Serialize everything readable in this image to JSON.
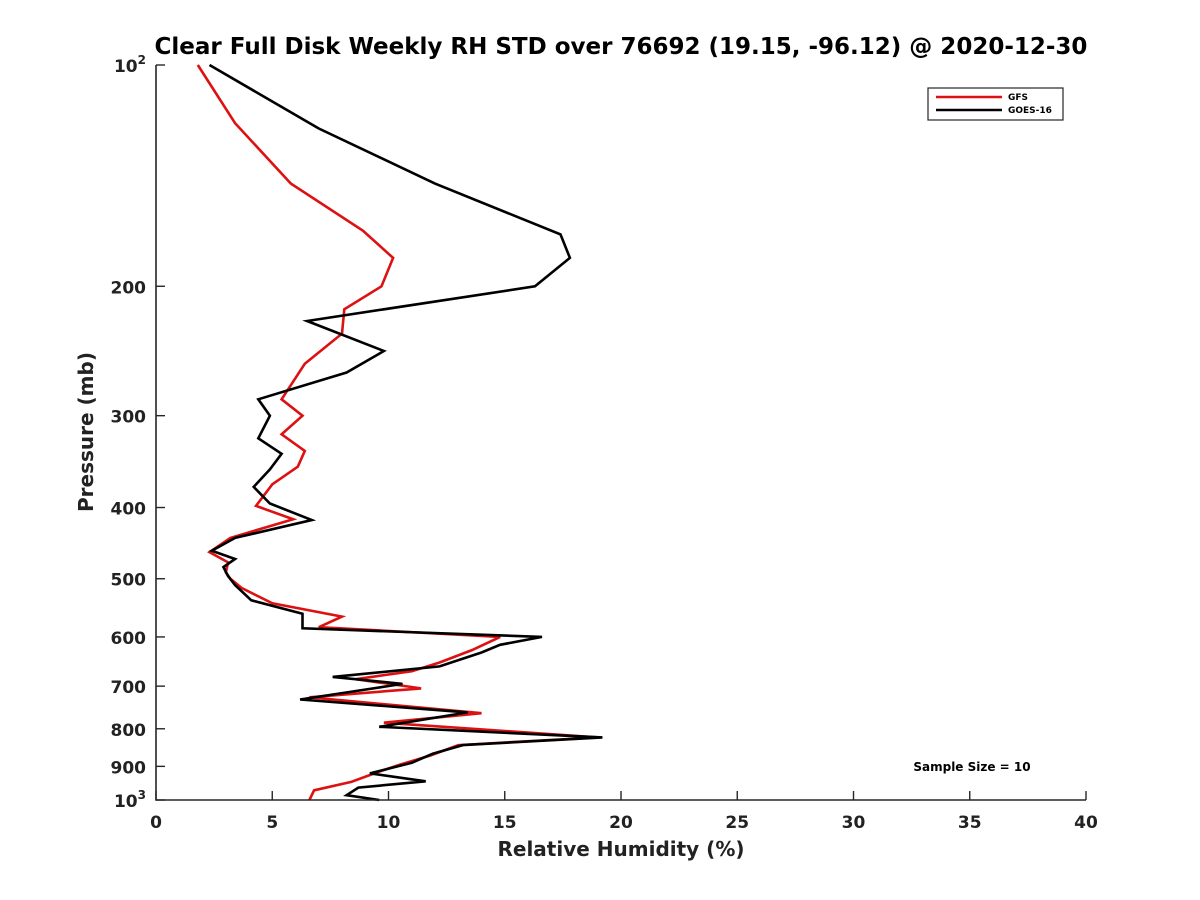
{
  "chart_data": {
    "type": "line",
    "title": "Clear Full Disk Weekly RH STD over 76692 (19.15, -96.12) @ 2020-12-30",
    "xlabel": "Relative Humidity (%)",
    "ylabel": "Pressure (mb)",
    "xlim": [
      0,
      40
    ],
    "ylim": [
      100,
      1000
    ],
    "yscale": "log",
    "yreversed": true,
    "grid": false,
    "legend_position": "top-right",
    "x_ticks": [
      "0",
      "5",
      "10",
      "15",
      "20",
      "25",
      "30",
      "35",
      "40"
    ],
    "y_ticks": [
      {
        "value": 100,
        "base": "10",
        "exp": "2"
      },
      {
        "value": 200,
        "label": "200"
      },
      {
        "value": 300,
        "label": "300"
      },
      {
        "value": 400,
        "label": "400"
      },
      {
        "value": 500,
        "label": "500"
      },
      {
        "value": 600,
        "label": "600"
      },
      {
        "value": 700,
        "label": "700"
      },
      {
        "value": 800,
        "label": "800"
      },
      {
        "value": 900,
        "label": "900"
      },
      {
        "value": 1000,
        "base": "10",
        "exp": "3"
      }
    ],
    "annotation": "Sample Size = 10",
    "series": [
      {
        "name": "GFS",
        "color": "#dd1111",
        "x": [
          1.8,
          3.4,
          5.8,
          8.9,
          10.2,
          9.7,
          8.1,
          8.0,
          6.4,
          5.4,
          6.3,
          5.4,
          6.4,
          6.1,
          5.0,
          4.3,
          5.9,
          3.2,
          2.3,
          3.1,
          3.0,
          3.2,
          3.7,
          5.0,
          8.0,
          7.0,
          14.8,
          13.6,
          12.2,
          11.0,
          8.6,
          11.4,
          6.6,
          14.0,
          9.8,
          19.0,
          13.0,
          11.8,
          10.5,
          9.6,
          8.4,
          6.8,
          6.6
        ],
        "y": [
          100,
          120,
          145,
          168,
          183,
          200,
          215,
          232,
          255,
          285,
          300,
          318,
          335,
          352,
          372,
          398,
          415,
          440,
          460,
          475,
          490,
          500,
          515,
          540,
          563,
          582,
          600,
          625,
          650,
          668,
          685,
          705,
          725,
          762,
          785,
          822,
          842,
          870,
          895,
          915,
          945,
          970,
          1000
        ]
      },
      {
        "name": "GOES-16",
        "color": "#000000",
        "x": [
          2.3,
          7.0,
          12.0,
          17.4,
          17.8,
          16.3,
          6.5,
          9.8,
          8.2,
          4.4,
          4.9,
          4.4,
          5.4,
          4.9,
          4.2,
          4.9,
          6.7,
          3.4,
          2.4,
          3.4,
          2.9,
          3.1,
          3.4,
          4.1,
          6.3,
          6.3,
          16.6,
          14.8,
          14.0,
          12.2,
          7.6,
          10.6,
          6.2,
          13.4,
          9.6,
          19.2,
          13.2,
          11.9,
          11.0,
          9.2,
          11.6,
          8.7,
          8.2,
          9.6
        ],
        "y": [
          100,
          122,
          145,
          170,
          183,
          200,
          223,
          245,
          262,
          285,
          300,
          322,
          338,
          355,
          375,
          395,
          416,
          440,
          458,
          470,
          482,
          496,
          510,
          535,
          558,
          584,
          600,
          615,
          630,
          658,
          680,
          695,
          730,
          760,
          795,
          822,
          842,
          865,
          890,
          920,
          943,
          962,
          985,
          1000
        ]
      }
    ]
  }
}
